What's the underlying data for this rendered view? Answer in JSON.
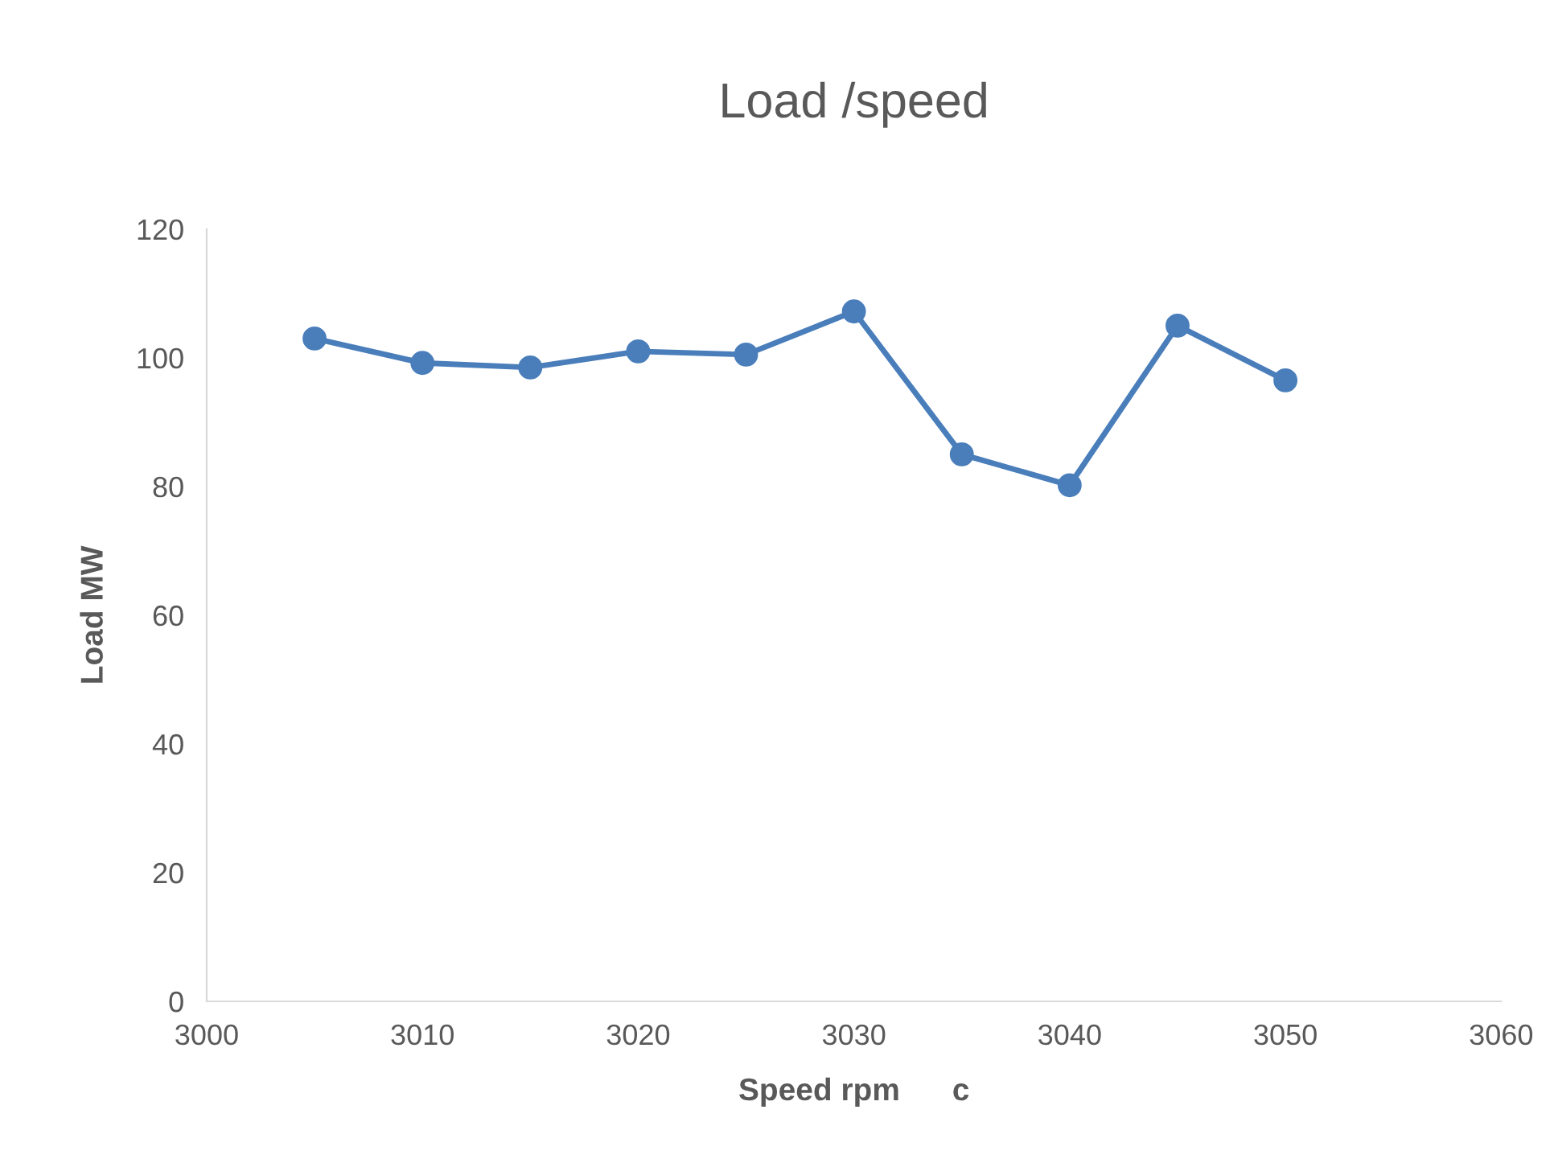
{
  "chart_data": {
    "type": "line",
    "title": "Load /speed",
    "xlabel": "Speed rpm      c",
    "ylabel": "Load MW",
    "x": [
      3005,
      3010,
      3015,
      3020,
      3025,
      3030,
      3035,
      3040,
      3045,
      3050
    ],
    "series": [
      {
        "color": "#4a7ebb",
        "values": [
          103,
          99.2,
          98.5,
          101,
          100.5,
          107.2,
          85,
          80.2,
          105,
          96.5
        ]
      }
    ],
    "xlim": [
      3000,
      3060
    ],
    "xticks": [
      3000,
      3010,
      3020,
      3030,
      3040,
      3050,
      3060
    ],
    "ylim": [
      0,
      120
    ],
    "yticks": [
      0,
      20,
      40,
      60,
      80,
      100,
      120
    ],
    "grid": false,
    "legend": false,
    "marker": "circle",
    "line_style": "solid"
  }
}
